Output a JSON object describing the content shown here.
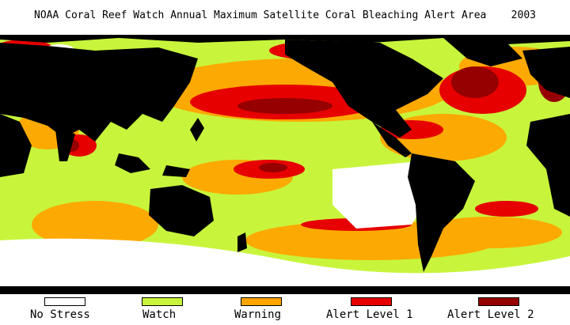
{
  "title": "NOAA Coral Reef Watch Annual Maximum Satellite Coral Bleaching Alert Area    2003",
  "map": {
    "ocean_colors": {
      "no_stress": "#ffffff",
      "watch": "#c8f53c",
      "warning": "#ffa500",
      "alert1": "#e60000",
      "alert2": "#960000",
      "land": "#000000"
    }
  },
  "legend": [
    {
      "label": "No Stress",
      "color": "#ffffff"
    },
    {
      "label": "Watch",
      "color": "#c8f53c"
    },
    {
      "label": "Warning",
      "color": "#ffa500"
    },
    {
      "label": "Alert Level 1",
      "color": "#e60000"
    },
    {
      "label": "Alert Level 2",
      "color": "#960000"
    }
  ]
}
